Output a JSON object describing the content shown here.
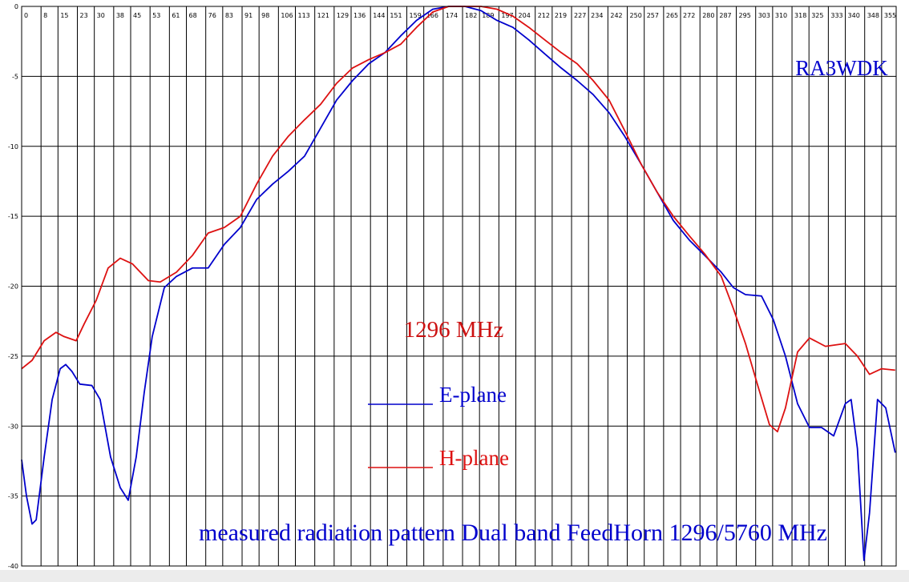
{
  "chart_data": {
    "type": "line",
    "annotations": {
      "callsign": "RA3WDK",
      "frequency": "1296 MHz",
      "caption": "measured radiation pattern Dual band FeedHorn 1296/5760 MHz"
    },
    "xlim": [
      0,
      361
    ],
    "xticks": [
      0,
      8,
      15,
      23,
      30,
      38,
      45,
      53,
      61,
      68,
      76,
      83,
      91,
      98,
      106,
      113,
      121,
      129,
      136,
      144,
      151,
      159,
      166,
      174,
      182,
      189,
      197,
      204,
      212,
      219,
      227,
      234,
      242,
      250,
      257,
      265,
      272,
      280,
      287,
      295,
      303,
      310,
      318,
      325,
      333,
      340,
      348,
      355
    ],
    "ylim": [
      -40,
      0
    ],
    "yticks": [
      0,
      -5,
      -10,
      -15,
      -20,
      -25,
      -30,
      -35,
      -40
    ],
    "grid": true,
    "series": [
      {
        "name": "E-plane",
        "color": "#0000cc",
        "x": [
          0,
          2,
          4.3,
          6,
          9.3,
          12.6,
          15.9,
          18.2,
          20.8,
          24,
          29,
          32.4,
          36.7,
          40.7,
          44,
          47.3,
          50.6,
          53.9,
          58.9,
          63.9,
          70.5,
          77,
          83.7,
          90.3,
          97,
          103.6,
          110,
          116.8,
          123.4,
          130,
          136.6,
          143.3,
          150,
          156.5,
          163,
          169.7,
          176.3,
          183,
          189.6,
          196.2,
          202.8,
          209.4,
          216,
          222.7,
          229.3,
          235.9,
          242.5,
          249,
          255.8,
          262.4,
          269,
          275.6,
          282,
          288.8,
          293.8,
          298.8,
          305.4,
          310.3,
          315.3,
          320.3,
          325.2,
          330.2,
          335.2,
          340,
          342.4,
          345,
          347.7,
          350,
          353.3,
          356.7,
          360.6
        ],
        "values": [
          -32.4,
          -35,
          -37,
          -36.7,
          -32.2,
          -28.1,
          -25.9,
          -25.6,
          -26.1,
          -27,
          -27.1,
          -28.1,
          -32.2,
          -34.4,
          -35.3,
          -32.2,
          -27.6,
          -23.6,
          -20.1,
          -19.3,
          -18.7,
          -18.7,
          -17,
          -15.8,
          -13.8,
          -12.7,
          -11.8,
          -10.7,
          -8.7,
          -6.7,
          -5.3,
          -4.1,
          -3.3,
          -2.1,
          -1,
          -0.2,
          0,
          0,
          -0.3,
          -1,
          -1.5,
          -2.4,
          -3.4,
          -4.4,
          -5.3,
          -6.3,
          -7.6,
          -9.3,
          -11.3,
          -13.3,
          -15.3,
          -16.7,
          -17.8,
          -19,
          -20.1,
          -20.6,
          -20.7,
          -22.4,
          -25,
          -28.4,
          -30.1,
          -30.1,
          -30.7,
          -28.4,
          -28.1,
          -31.6,
          -39.6,
          -36.2,
          -28.1,
          -28.7,
          -31.9
        ]
      },
      {
        "name": "H-plane",
        "color": "#dd1111",
        "x": [
          0,
          4.3,
          9.3,
          14.2,
          17.5,
          22.5,
          25.8,
          30.8,
          35.7,
          40.7,
          45.7,
          52.3,
          57.2,
          63.9,
          70.5,
          77,
          83.7,
          90.3,
          97,
          103.6,
          110,
          116.8,
          123.4,
          130,
          136.6,
          143.3,
          150,
          156.5,
          163,
          169.7,
          176.3,
          189.6,
          196.2,
          202.8,
          209.4,
          216,
          222.7,
          229.3,
          235.9,
          242.5,
          249,
          255.8,
          262.4,
          269,
          275.6,
          282,
          288.8,
          293.8,
          298.8,
          303.7,
          308.7,
          312,
          315.3,
          320.3,
          325.2,
          331.8,
          340,
          345,
          350,
          355,
          360.6
        ],
        "values": [
          -25.9,
          -25.3,
          -23.9,
          -23.3,
          -23.6,
          -23.9,
          -22.7,
          -21,
          -18.7,
          -18,
          -18.4,
          -19.6,
          -19.7,
          -19,
          -17.8,
          -16.2,
          -15.8,
          -15,
          -12.7,
          -10.7,
          -9.3,
          -8.1,
          -7,
          -5.5,
          -4.4,
          -3.8,
          -3.3,
          -2.7,
          -1.5,
          -0.4,
          0,
          0,
          -0.2,
          -0.7,
          -1.5,
          -2.4,
          -3.3,
          -4.1,
          -5.3,
          -6.7,
          -8.9,
          -11.3,
          -13.3,
          -15,
          -16.4,
          -17.7,
          -19.3,
          -21.6,
          -24.1,
          -27,
          -29.9,
          -30.4,
          -28.7,
          -24.7,
          -23.7,
          -24.3,
          -24.1,
          -25,
          -26.3,
          -25.9,
          -26
        ]
      }
    ]
  }
}
